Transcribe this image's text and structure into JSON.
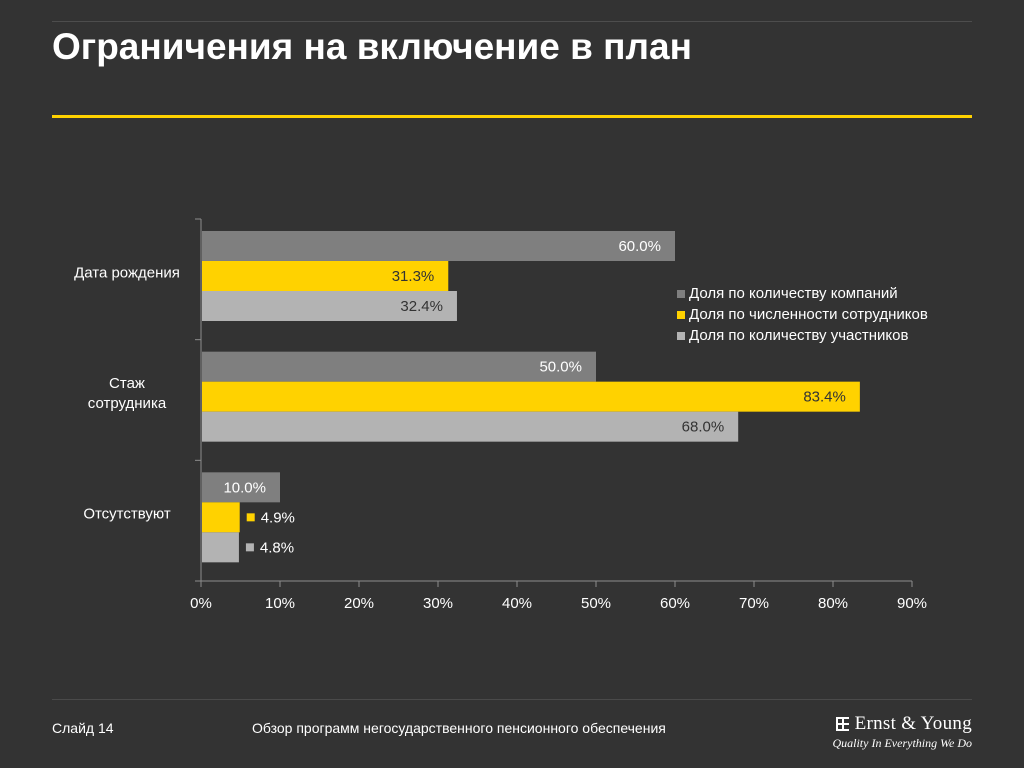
{
  "slide": {
    "title": "Ограничения на включение в план",
    "footer_text": "Обзор программ негосударственного пенсионного обеспечения",
    "slide_number": "Слайд 14",
    "brand_name": "Ernst & Young",
    "brand_tagline": "Quality In Everything We Do"
  },
  "colors": {
    "background": "#333333",
    "accent_yellow": "#ffd200",
    "series_dark_gray": "#7f7f7f",
    "series_yellow": "#ffd200",
    "series_light_gray": "#b3b3b3"
  },
  "chart_data": {
    "type": "bar",
    "orientation": "horizontal",
    "categories": [
      "Дата рождения",
      "Стаж сотрудника",
      "Отсутствуют"
    ],
    "series": [
      {
        "name": "Доля по количеству компаний",
        "values": [
          60.0,
          50.0,
          10.0
        ],
        "labels": [
          "60.0%",
          "50.0%",
          "10.0%"
        ],
        "color": "#7f7f7f"
      },
      {
        "name": "Доля по численности сотрудников",
        "values": [
          31.3,
          83.4,
          4.9
        ],
        "labels": [
          "31.3%",
          "83.4%",
          "4.9%"
        ],
        "color": "#ffd200"
      },
      {
        "name": "Доля по количеству участников",
        "values": [
          32.4,
          68.0,
          4.8
        ],
        "labels": [
          "32.4%",
          "68.0%",
          "4.8%"
        ],
        "color": "#b3b3b3"
      }
    ],
    "xlim": [
      0,
      90
    ],
    "x_ticks": [
      "0%",
      "10%",
      "20%",
      "30%",
      "40%",
      "50%",
      "60%",
      "70%",
      "80%",
      "90%"
    ],
    "legend_position": "right",
    "grid": false
  }
}
